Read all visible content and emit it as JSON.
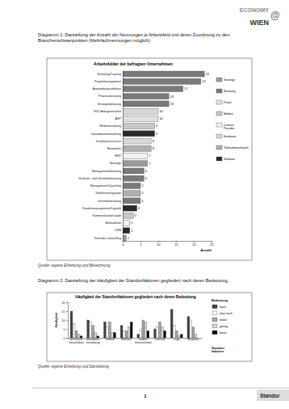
{
  "header": {
    "logo_top": "ECONOMY",
    "logo_at": "@",
    "logo_bottom": "WIEN"
  },
  "captions": [
    "Diagramm 1: Darstellung der Anzahl der Nennungen je Arbeitsfeld und deren Zuordnung zu den Branchenschwerpunkten (Mehrfachnennungen möglich)",
    "Diagramm 2: Darstellung der Häufigkeit der Standortfaktoren gegliedert nach deren Bedeutung"
  ],
  "sources": [
    "Quelle: eigene Erhebung und Berechnung",
    "Quelle: eigene Erhebung und Darstellung"
  ],
  "footer": {
    "page": 1,
    "text": "Standor"
  },
  "chart_data": [
    {
      "type": "bar",
      "title": "Arbeitsfelder der befragten Unternehmen",
      "xlabel": "Anzahl",
      "orientation": "horizontal",
      "stacked": true,
      "data_labels": true,
      "legend": "right",
      "grid": false,
      "categories": [
        "Schulung/Training",
        "Projektmanagement",
        "Anwendungssoftware",
        "Prozessberatung",
        "Strategieberatung",
        "EDV-Anlagentechnik",
        "ASP",
        "Webentwicklung",
        "Datenbankentwicklung",
        "Installationsservice",
        "Netzwerke",
        "ERP",
        "Sonstige",
        "Managementberatung",
        "Verkaufs- und Vertriebsberatung",
        "Management/Coaching",
        "Telefonieintegration",
        "Vertriebsberatung",
        "Kundenmanagement/Logistik",
        "Kommunikationsaudit",
        "Webauftritte",
        "CRM",
        "Vertriebs-Controlling"
      ],
      "series": [
        {
          "name": "Sonstige",
          "color": "#9a9a9a",
          "values": [
            null,
            null,
            null,
            null,
            null,
            null,
            null,
            null,
            null,
            null,
            null,
            null,
            7,
            null,
            null,
            null,
            null,
            null,
            null,
            null,
            null,
            null,
            1
          ]
        },
        {
          "name": "Beratung",
          "color": "#7a7a7a",
          "values": [
            23,
            22,
            17,
            13,
            13,
            null,
            null,
            null,
            null,
            null,
            null,
            null,
            null,
            6,
            6,
            5,
            null,
            5,
            null,
            null,
            null,
            null,
            null
          ]
        },
        {
          "name": "Portal",
          "color": "#e0e0e0",
          "values": [
            null,
            null,
            null,
            null,
            null,
            null,
            10,
            null,
            null,
            null,
            null,
            null,
            null,
            null,
            null,
            null,
            null,
            null,
            null,
            null,
            null,
            null,
            null
          ]
        },
        {
          "name": "Medien",
          "color": "#c8c8c8",
          "values": [
            null,
            null,
            null,
            null,
            null,
            null,
            null,
            9,
            null,
            null,
            null,
            null,
            null,
            null,
            null,
            null,
            null,
            null,
            null,
            3,
            null,
            null,
            null
          ]
        },
        {
          "name": "Content Provider",
          "color": "#f2f2f2",
          "values": [
            null,
            null,
            null,
            null,
            null,
            null,
            null,
            null,
            null,
            null,
            null,
            7,
            null,
            null,
            null,
            null,
            null,
            null,
            null,
            null,
            2,
            null,
            null
          ]
        },
        {
          "name": "Hardware",
          "color": "#d8d8d8",
          "values": [
            null,
            null,
            null,
            null,
            null,
            10,
            null,
            null,
            null,
            8,
            null,
            null,
            null,
            null,
            null,
            null,
            null,
            null,
            null,
            null,
            null,
            null,
            null
          ]
        },
        {
          "name": "Telekommunikation",
          "color": "#b0b0b0",
          "values": [
            null,
            null,
            null,
            null,
            null,
            null,
            null,
            null,
            null,
            null,
            8,
            null,
            null,
            null,
            null,
            null,
            5,
            null,
            null,
            null,
            null,
            null,
            null
          ]
        },
        {
          "name": "Software",
          "color": "#2a2a2a",
          "values": [
            null,
            null,
            null,
            null,
            null,
            null,
            null,
            null,
            9,
            null,
            null,
            null,
            null,
            null,
            null,
            null,
            null,
            null,
            4,
            null,
            null,
            2,
            null
          ]
        }
      ],
      "xlim": [
        0,
        25
      ],
      "xticks": [
        0,
        5,
        10,
        15,
        20,
        25
      ]
    },
    {
      "type": "bar",
      "title": "Häufigkeit der Standortfaktoren gegliedert nach deren Bedeutung",
      "ylabel": "Häufigkeit",
      "xlabel": "Standort-faktoren",
      "legend_title": "Bedeutung",
      "legend": "right",
      "grid": false,
      "categories": [
        "technische Infrastruktur",
        "Immobilien-verwaltung",
        "Umfeld",
        "Wohnort",
        "andere Unternehmen",
        "Zentrum",
        "Lage",
        "Mietpreis"
      ],
      "series": [
        {
          "name": "hoch",
          "color": "#404040",
          "values": [
            15,
            10,
            9,
            7,
            2,
            5,
            16,
            12
          ]
        },
        {
          "name": "eher hoch",
          "color": "#ffffff",
          "values": [
            8,
            9,
            6,
            4,
            5,
            6,
            7,
            10
          ]
        },
        {
          "name": "mittel",
          "color": "#a6a6a6",
          "values": [
            4,
            7,
            9,
            4,
            10,
            9,
            4,
            6
          ]
        },
        {
          "name": "gering",
          "color": "#d9d9d9",
          "values": [
            2,
            3,
            3,
            6,
            9,
            6,
            1,
            2
          ]
        },
        {
          "name": "keine",
          "color": "#000000",
          "values": [
            1,
            1,
            3,
            9,
            4,
            4,
            2,
            0
          ]
        }
      ],
      "ylim": [
        0,
        20
      ],
      "yticks": [
        0,
        5,
        10,
        15,
        20
      ]
    }
  ]
}
